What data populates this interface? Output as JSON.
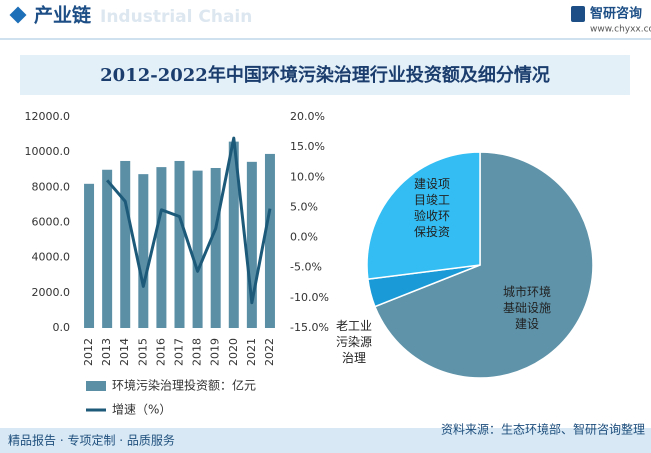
{
  "header": {
    "title": "产业链",
    "watermark": "Industrial Chain",
    "brand": "智研咨询",
    "url": "www.chyxx.com"
  },
  "title": "2012-2022年中国环境污染治理行业投资额及细分情况",
  "chart_data": [
    {
      "type": "bar",
      "categories": [
        "2012",
        "2013",
        "2014",
        "2015",
        "2016",
        "2017",
        "2018",
        "2019",
        "2020",
        "2021",
        "2022"
      ],
      "series": [
        {
          "name": "环境污染治理投资额：亿元",
          "type": "bar",
          "color": "#5b8fa6",
          "values": [
            8200,
            9000,
            9500,
            8750,
            9150,
            9500,
            8950,
            9100,
            10600,
            9450,
            9900
          ]
        },
        {
          "name": "增速（%）",
          "type": "line",
          "axis": "y2",
          "color": "#1d5a7a",
          "values": [
            null,
            9.5,
            6.0,
            -8.1,
            4.6,
            3.5,
            -5.6,
            1.5,
            16.5,
            -10.8,
            4.8
          ]
        }
      ],
      "ylim": [
        0,
        12000
      ],
      "yticks": [
        {
          "value": 0,
          "label": "0.0"
        },
        {
          "value": 2000,
          "label": "2000.0"
        },
        {
          "value": 4000,
          "label": "4000.0"
        },
        {
          "value": 6000,
          "label": "6000.0"
        },
        {
          "value": 8000,
          "label": "8000.0"
        },
        {
          "value": 10000,
          "label": "10000.0"
        },
        {
          "value": 12000,
          "label": "12000.0"
        }
      ],
      "y2lim": [
        -15,
        20
      ],
      "y2ticks": [
        {
          "value": -15,
          "label": "-15.0%"
        },
        {
          "value": -10,
          "label": "-10.0%"
        },
        {
          "value": -5,
          "label": "-5.0%"
        },
        {
          "value": 0,
          "label": "0.0%"
        },
        {
          "value": 5,
          "label": "5.0%"
        },
        {
          "value": 10,
          "label": "10.0%"
        },
        {
          "value": 15,
          "label": "15.0%"
        },
        {
          "value": 20,
          "label": "20.0%"
        }
      ],
      "grid": false
    },
    {
      "type": "pie",
      "categories": [
        "城市环境基础设施建设",
        "老工业污染源治理",
        "建设项目竣工验收环保投资"
      ],
      "values": [
        69,
        4,
        27
      ],
      "colors": [
        "#5e93a9",
        "#1a9bd7",
        "#33bdf2"
      ]
    }
  ],
  "footer": {
    "tagline": "精品报告 · 专项定制 · 品质服务",
    "source": "资料来源：生态环境部、智研咨询整理"
  }
}
